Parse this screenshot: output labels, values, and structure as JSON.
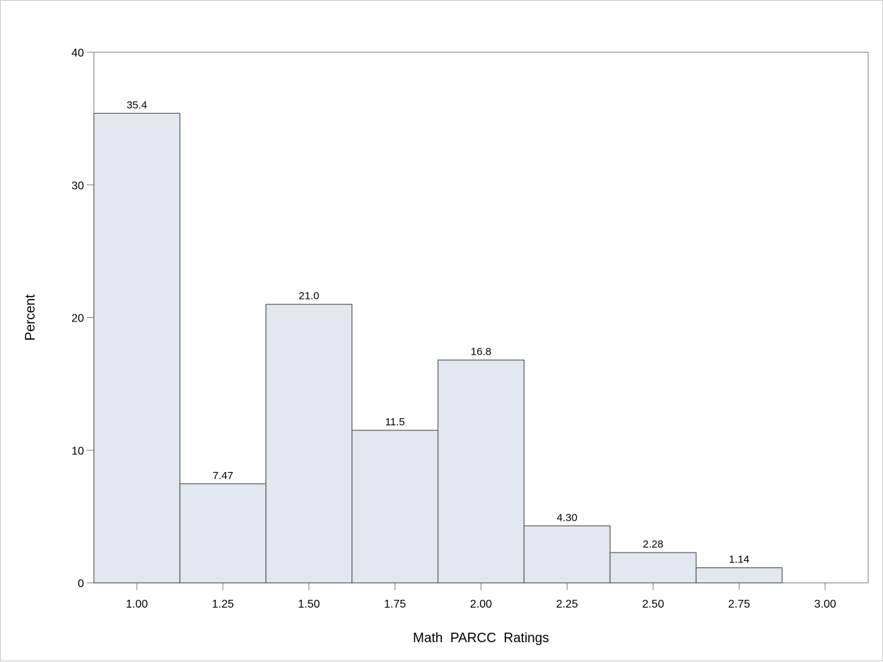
{
  "chart_data": {
    "type": "bar",
    "subtype": "histogram",
    "title": "",
    "xlabel": "Math  PARCC  Ratings",
    "ylabel": "Percent",
    "bin_width": 0.25,
    "x": [
      "1.00",
      "1.25",
      "1.50",
      "1.75",
      "2.00",
      "2.25",
      "2.50",
      "2.75",
      "3.00"
    ],
    "values": [
      35.4,
      7.47,
      21.0,
      11.5,
      16.8,
      4.3,
      2.28,
      1.14,
      0
    ],
    "value_labels": [
      "35.4",
      "7.47",
      "21.0",
      "11.5",
      "16.8",
      "4.30",
      "2.28",
      "1.14",
      ""
    ],
    "x_ticks": [
      "1.00",
      "1.25",
      "1.50",
      "1.75",
      "2.00",
      "2.25",
      "2.50",
      "2.75",
      "3.00"
    ],
    "y_ticks": [
      "0",
      "10",
      "20",
      "30",
      "40"
    ],
    "xlim": [
      0.875,
      3.125
    ],
    "ylim": [
      0,
      40
    ],
    "grid": false,
    "legend": "none",
    "colors": {
      "bar_fill": "#e3e7f0",
      "bar_stroke": "#5a5a5a",
      "axis": "#7a7a7a"
    }
  }
}
